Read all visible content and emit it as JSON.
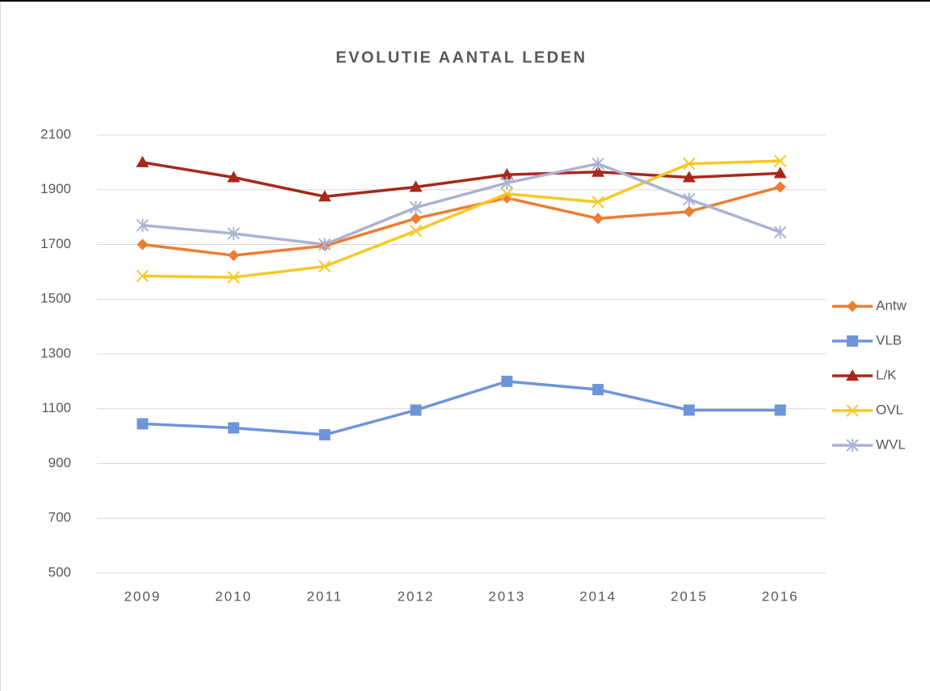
{
  "chart_data": {
    "type": "line",
    "title": "EVOLUTIE AANTAL LEDEN",
    "categories": [
      "2009",
      "2010",
      "2011",
      "2012",
      "2013",
      "2014",
      "2015",
      "2016"
    ],
    "series": [
      {
        "name": "Antw",
        "color": "#ED7D31",
        "marker": "diamond",
        "values": [
          1700,
          1660,
          1695,
          1795,
          1870,
          1795,
          1820,
          1910
        ]
      },
      {
        "name": "VLB",
        "color": "#6F95D9",
        "marker": "square",
        "values": [
          1045,
          1030,
          1005,
          1095,
          1200,
          1170,
          1095,
          1095
        ]
      },
      {
        "name": "L/K",
        "color": "#A8281B",
        "marker": "triangle",
        "values": [
          2000,
          1945,
          1875,
          1910,
          1955,
          1965,
          1945,
          1960
        ]
      },
      {
        "name": "OVL",
        "color": "#F7C825",
        "marker": "x",
        "values": [
          1585,
          1580,
          1620,
          1750,
          1885,
          1855,
          1995,
          2005
        ]
      },
      {
        "name": "WVL",
        "color": "#AAB3D3",
        "marker": "asterisk",
        "values": [
          1770,
          1740,
          1700,
          1835,
          1925,
          1995,
          1865,
          1745
        ]
      }
    ],
    "ylim": [
      500,
      2100
    ],
    "yticks": [
      500,
      700,
      900,
      1100,
      1300,
      1500,
      1700,
      1900,
      2100
    ],
    "grid": true,
    "legend": "right"
  }
}
